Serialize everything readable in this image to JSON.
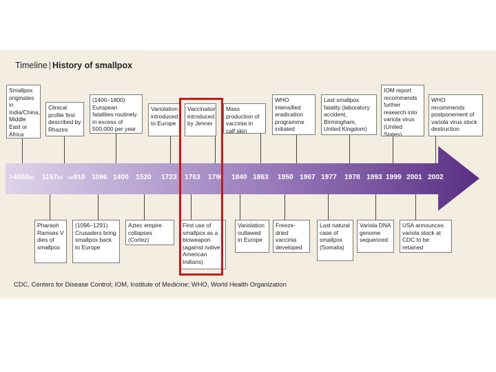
{
  "title": {
    "label": "Timeline",
    "separator": "|",
    "main": "History of smallpox"
  },
  "years": [
    {
      "id": "y1",
      "num": ">4000",
      "era": "BC"
    },
    {
      "id": "y2",
      "num": "1157",
      "era": "BC"
    },
    {
      "id": "y3",
      "era": "AD",
      "num": "910"
    },
    {
      "id": "y4",
      "num": "1096"
    },
    {
      "id": "y5",
      "num": "1400"
    },
    {
      "id": "y6",
      "num": "1520"
    },
    {
      "id": "y7",
      "num": "1723"
    },
    {
      "id": "y8",
      "num": "1763"
    },
    {
      "id": "y9",
      "num": "1796"
    },
    {
      "id": "y10",
      "num": "1840"
    },
    {
      "id": "y11",
      "num": "1863"
    },
    {
      "id": "y12",
      "num": "1950"
    },
    {
      "id": "y13",
      "num": "1967"
    },
    {
      "id": "y14",
      "num": "1977"
    },
    {
      "id": "y15",
      "num": "1978"
    },
    {
      "id": "y16",
      "num": "1993"
    },
    {
      "id": "y17",
      "num": "1999"
    },
    {
      "id": "y18",
      "num": "2001"
    },
    {
      "id": "y19",
      "num": "2002"
    }
  ],
  "events_top": [
    {
      "id": "t1",
      "text": "Smallpox originates in India/China, Middle East or Africa"
    },
    {
      "id": "t2",
      "text": "Clinical profile first described by Rhazes"
    },
    {
      "id": "t3",
      "text": "(1400–1800) European fatalities routinely in excess of 500,000 per year"
    },
    {
      "id": "t4",
      "text": "Variolation introduced to Europe"
    },
    {
      "id": "t5",
      "text": "Vaccination introduced by Jenner"
    },
    {
      "id": "t6",
      "text": "Mass production of vaccinia in calf skin"
    },
    {
      "id": "t7",
      "text": "WHO intensified eradication programme initiated"
    },
    {
      "id": "t8",
      "text": "Last smallpox fatality (laboratory accident, Birmingham, United Kingdom)"
    },
    {
      "id": "t9",
      "text": "IOM report recommends further research into variola virus (United States)"
    },
    {
      "id": "t10",
      "text": "WHO recommends postponement of variola virus stock destruction"
    }
  ],
  "events_bottom": [
    {
      "id": "b1",
      "text": "Pharaoh Ramses V dies of smallpox"
    },
    {
      "id": "b2",
      "text": "(1096–1291) Crusaders bring smallpox back to Europe"
    },
    {
      "id": "b3",
      "text": "Aztec empire collapses (Cortez)"
    },
    {
      "id": "b4",
      "text": "First use of smallpox as a bioweapon (against native American Indians)"
    },
    {
      "id": "b5",
      "text": "Variolation outlawed in Europe"
    },
    {
      "id": "b6",
      "text": "Freeze-dried vaccinia developed"
    },
    {
      "id": "b7",
      "text": "Last natural case of smallpox (Somalia)"
    },
    {
      "id": "b8",
      "text": "Variola DNA genome sequenced"
    },
    {
      "id": "b9",
      "text": "USA announces variola stock at CDC to be retained"
    }
  ],
  "footnote": "CDC, Centers for Disease Control; IOM, Institute of Medicine; WHO, World Health Organization",
  "colors": {
    "panel": "#f4eee2",
    "arrow_start": "#ddd3ea",
    "arrow_end": "#5a2f84",
    "highlight": "#c81818",
    "box_border": "#777777"
  }
}
